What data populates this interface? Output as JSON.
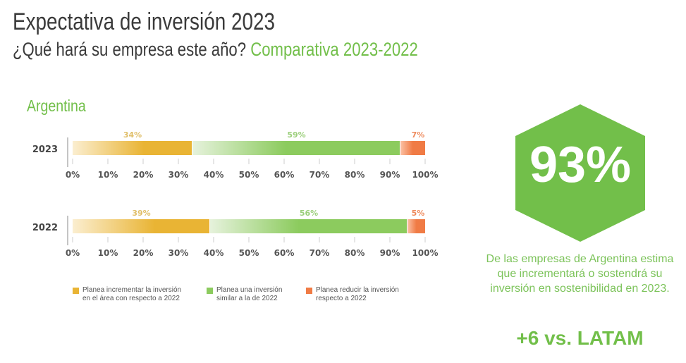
{
  "header": {
    "title": "Expectativa de inversión 2023",
    "subtitle_question": "¿Qué hará su empresa este año?",
    "subtitle_highlight": "Comparativa 2023-2022"
  },
  "section": {
    "country": "Argentina"
  },
  "colors": {
    "increase": "#e9b434",
    "similar": "#8ccb5e",
    "reduce": "#f07b45",
    "brand_green": "#72bf4a"
  },
  "chart_data": {
    "type": "bar",
    "orientation": "horizontal-stacked",
    "categories": [
      "2023",
      "2022"
    ],
    "series": [
      {
        "name": "Planea incrementar la inversión en el área con respecto a 2022",
        "values": [
          34,
          39
        ],
        "labels": [
          "34%",
          "39%"
        ]
      },
      {
        "name": "Planea una inversión similar a la de 2022",
        "values": [
          59,
          56
        ],
        "labels": [
          "59%",
          "56%"
        ]
      },
      {
        "name": "Planea reducir la inversión respecto a 2022",
        "values": [
          7,
          5
        ],
        "labels": [
          "7%",
          "5%"
        ]
      }
    ],
    "xlim": [
      0,
      100
    ],
    "xticks": [
      "0%",
      "10%",
      "20%",
      "30%",
      "40%",
      "50%",
      "60%",
      "70%",
      "80%",
      "90%",
      "100%"
    ],
    "legend": "bottom"
  },
  "legend": [
    {
      "line1": "Planea incrementar la inversión",
      "line2": "en el área con respecto a 2022"
    },
    {
      "line1": "Planea una inversión",
      "line2": "similar a la de 2022"
    },
    {
      "line1": "Planea reducir la inversión",
      "line2": "respecto a 2022"
    }
  ],
  "highlight": {
    "value": "93%",
    "description": "De las empresas de Argentina estima que incrementará o sostendrá su inversión en sostenibilidad en 2023.",
    "comparison": "+6 vs. LATAM"
  }
}
